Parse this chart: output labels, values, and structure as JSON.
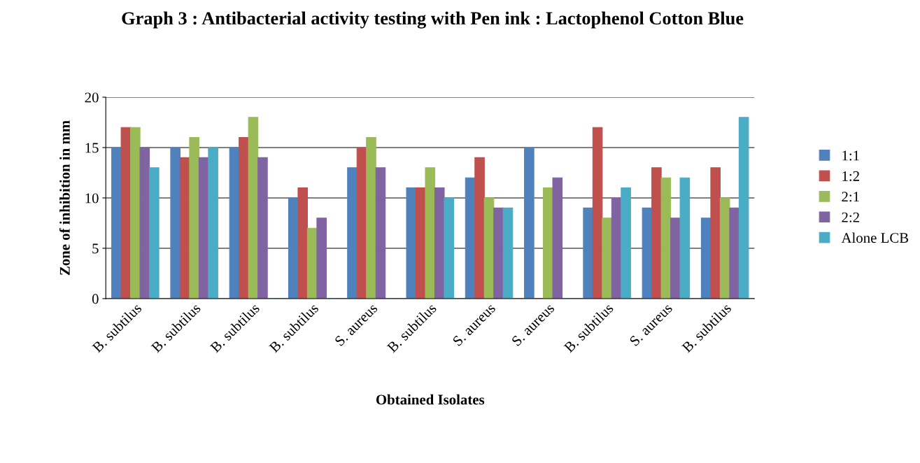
{
  "chart_data": {
    "type": "bar",
    "title": "Graph 3 : Antibacterial activity testing with Pen ink : Lactophenol Cotton Blue",
    "xlabel": "Obtained Isolates",
    "ylabel": "Zone of inhibition in mm",
    "categories": [
      "B. subtilus",
      "B. subtilus",
      "B. subtilus",
      "B. subtilus",
      "S. aureus",
      "B. subtilus",
      "S. aureus",
      "S. aureus",
      "B. subtilus",
      "S. aureus",
      "B. subtilus"
    ],
    "series": [
      {
        "name": "1:1",
        "color": "#4f81bd",
        "values": [
          15,
          15,
          15,
          10,
          13,
          11,
          12,
          15,
          9,
          9,
          8
        ]
      },
      {
        "name": "1:2",
        "color": "#c0504d",
        "values": [
          17,
          14,
          16,
          11,
          15,
          11,
          14,
          0,
          17,
          13,
          13
        ]
      },
      {
        "name": "2:1",
        "color": "#9bbb59",
        "values": [
          17,
          16,
          18,
          7,
          16,
          13,
          10,
          11,
          8,
          12,
          10
        ]
      },
      {
        "name": "2:2",
        "color": "#8064a2",
        "values": [
          15,
          14,
          14,
          8,
          13,
          11,
          9,
          12,
          10,
          8,
          9
        ]
      },
      {
        "name": "Alone LCB",
        "color": "#4bacc6",
        "values": [
          13,
          15,
          0,
          0,
          0,
          10,
          9,
          0,
          11,
          12,
          18
        ]
      }
    ],
    "ylim": [
      0,
      20
    ],
    "yticks": [
      0,
      5,
      10,
      15,
      20
    ],
    "grid": "y",
    "legend": "right"
  }
}
